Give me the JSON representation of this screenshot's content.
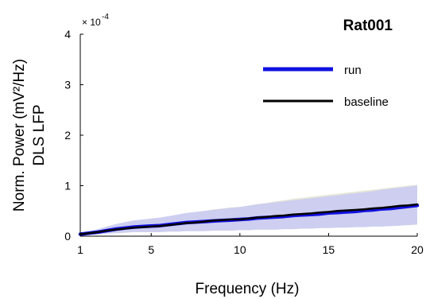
{
  "chart_data": {
    "type": "line",
    "title": "Rat001",
    "xlabel": "Frequency (Hz)",
    "ylabel_line1": "Norm. Power (mV²/Hz)",
    "ylabel_line2": "DLS LFP",
    "y_multiplier_base": "× 10",
    "y_multiplier_exp": "-4",
    "xlim": [
      1,
      20
    ],
    "ylim": [
      0,
      4
    ],
    "x_ticks": [
      1,
      5,
      10,
      15,
      20
    ],
    "y_ticks": [
      0,
      1,
      2,
      3,
      4
    ],
    "legend_position": "top-right",
    "series": [
      {
        "name": "run",
        "color": "#1010e0",
        "band_color": "#c9c9f5",
        "x": [
          1,
          1.5,
          2,
          2.5,
          3,
          3.5,
          4,
          4.5,
          5,
          5.5,
          6,
          6.5,
          7,
          7.5,
          8,
          8.5,
          9,
          9.5,
          10,
          10.5,
          11,
          11.5,
          12,
          12.5,
          13,
          13.5,
          14,
          14.5,
          15,
          15.5,
          16,
          16.5,
          17,
          17.5,
          18,
          18.5,
          19,
          19.5,
          20
        ],
        "y": [
          0.04,
          0.06,
          0.08,
          0.11,
          0.14,
          0.16,
          0.18,
          0.19,
          0.2,
          0.21,
          0.23,
          0.25,
          0.27,
          0.28,
          0.29,
          0.3,
          0.31,
          0.32,
          0.33,
          0.34,
          0.36,
          0.37,
          0.38,
          0.39,
          0.41,
          0.42,
          0.43,
          0.44,
          0.46,
          0.47,
          0.48,
          0.49,
          0.51,
          0.52,
          0.54,
          0.55,
          0.57,
          0.59,
          0.61
        ],
        "upper": [
          0.07,
          0.1,
          0.14,
          0.19,
          0.24,
          0.28,
          0.31,
          0.33,
          0.35,
          0.37,
          0.4,
          0.43,
          0.46,
          0.48,
          0.5,
          0.52,
          0.54,
          0.56,
          0.58,
          0.6,
          0.63,
          0.65,
          0.67,
          0.69,
          0.71,
          0.73,
          0.75,
          0.77,
          0.79,
          0.81,
          0.83,
          0.85,
          0.87,
          0.89,
          0.92,
          0.94,
          0.96,
          0.98,
          1.0
        ],
        "lower": [
          0.02,
          0.03,
          0.04,
          0.05,
          0.06,
          0.07,
          0.08,
          0.08,
          0.08,
          0.08,
          0.09,
          0.09,
          0.1,
          0.1,
          0.1,
          0.11,
          0.11,
          0.11,
          0.12,
          0.12,
          0.13,
          0.13,
          0.13,
          0.14,
          0.14,
          0.15,
          0.15,
          0.16,
          0.16,
          0.17,
          0.17,
          0.18,
          0.18,
          0.19,
          0.19,
          0.2,
          0.21,
          0.22,
          0.23
        ]
      },
      {
        "name": "baseline",
        "color": "#000000",
        "band_color": "#d8dcc6",
        "x": [
          1,
          1.5,
          2,
          2.5,
          3,
          3.5,
          4,
          4.5,
          5,
          5.5,
          6,
          6.5,
          7,
          7.5,
          8,
          8.5,
          9,
          9.5,
          10,
          10.5,
          11,
          11.5,
          12,
          12.5,
          13,
          13.5,
          14,
          14.5,
          15,
          15.5,
          16,
          16.5,
          17,
          17.5,
          18,
          18.5,
          19,
          19.5,
          20
        ],
        "y": [
          0.04,
          0.06,
          0.08,
          0.11,
          0.13,
          0.15,
          0.17,
          0.18,
          0.19,
          0.2,
          0.22,
          0.24,
          0.26,
          0.27,
          0.29,
          0.31,
          0.32,
          0.33,
          0.33,
          0.35,
          0.37,
          0.38,
          0.4,
          0.41,
          0.43,
          0.44,
          0.45,
          0.47,
          0.48,
          0.5,
          0.51,
          0.52,
          0.53,
          0.55,
          0.56,
          0.58,
          0.6,
          0.61,
          0.63
        ],
        "upper": [
          0.07,
          0.1,
          0.13,
          0.18,
          0.22,
          0.26,
          0.3,
          0.32,
          0.34,
          0.36,
          0.39,
          0.42,
          0.45,
          0.47,
          0.5,
          0.53,
          0.55,
          0.57,
          0.58,
          0.61,
          0.64,
          0.66,
          0.69,
          0.71,
          0.74,
          0.76,
          0.78,
          0.8,
          0.82,
          0.84,
          0.86,
          0.88,
          0.9,
          0.92,
          0.94,
          0.96,
          0.98,
          1.0,
          1.02
        ],
        "lower": [
          0.02,
          0.03,
          0.04,
          0.05,
          0.06,
          0.07,
          0.08,
          0.08,
          0.08,
          0.08,
          0.09,
          0.09,
          0.1,
          0.1,
          0.1,
          0.11,
          0.11,
          0.11,
          0.12,
          0.12,
          0.13,
          0.13,
          0.13,
          0.14,
          0.14,
          0.15,
          0.15,
          0.16,
          0.16,
          0.17,
          0.17,
          0.18,
          0.18,
          0.19,
          0.19,
          0.2,
          0.21,
          0.22,
          0.23
        ]
      }
    ]
  }
}
